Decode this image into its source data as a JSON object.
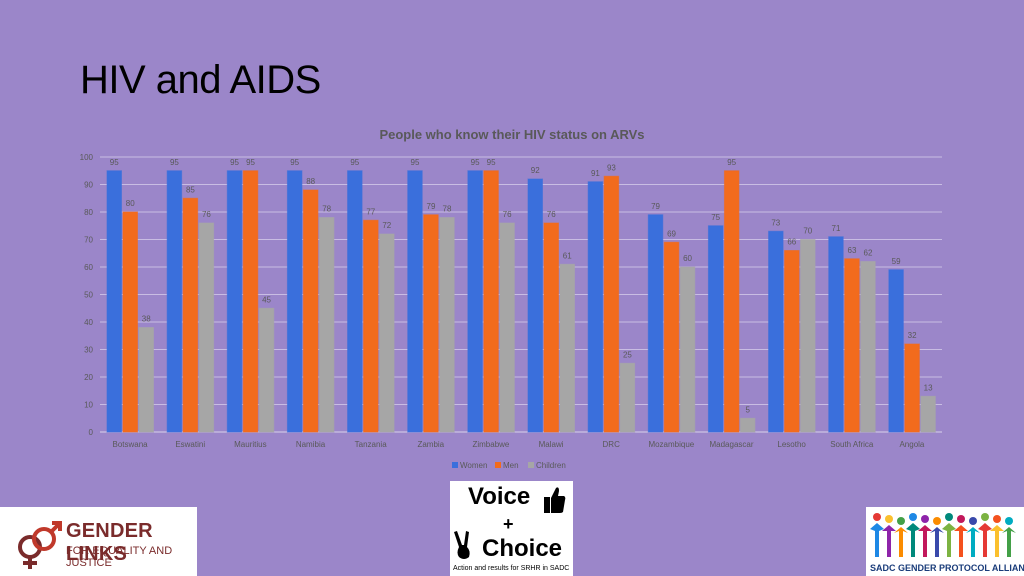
{
  "slide": {
    "title": "HIV and AIDS"
  },
  "chart_data": {
    "type": "bar",
    "title": "People who know their HIV status on ARVs",
    "categories": [
      "Botswana",
      "Eswatini",
      "Mauritius",
      "Namibia",
      "Tanzania",
      "Zambia",
      "Zimbabwe",
      "Malawi",
      "DRC",
      "Mozambique",
      "Madagascar",
      "Lesotho",
      "South Africa",
      "Angola"
    ],
    "series": [
      {
        "name": "Women",
        "color": "#3a6fdc",
        "values": [
          95,
          95,
          95,
          95,
          95,
          95,
          95,
          92,
          91,
          79,
          75,
          73,
          71,
          59
        ]
      },
      {
        "name": "Men",
        "color": "#f26b1d",
        "values": [
          80,
          85,
          95,
          88,
          77,
          79,
          95,
          76,
          93,
          69,
          95,
          66,
          63,
          32
        ]
      },
      {
        "name": "Children",
        "color": "#a6a6a6",
        "values": [
          38,
          76,
          45,
          78,
          72,
          78,
          76,
          61,
          25,
          60,
          5,
          70,
          62,
          13
        ]
      }
    ],
    "ylim": [
      0,
      100
    ],
    "yticks": [
      0,
      10,
      20,
      30,
      40,
      50,
      60,
      70,
      80,
      90,
      100
    ],
    "grid": true,
    "legend": "bottom"
  },
  "logos": {
    "gender_links": {
      "line1": "GENDER LINKS",
      "line2": "FOR EQUALITY AND JUSTICE"
    },
    "voice_choice": {
      "word1": "Voice",
      "plus": "+",
      "word2": "Choice",
      "tagline": "Action and results for SRHR in SADC"
    },
    "sadc": {
      "caption": "SADC GENDER PROTOCOL ALLIANCE"
    }
  }
}
